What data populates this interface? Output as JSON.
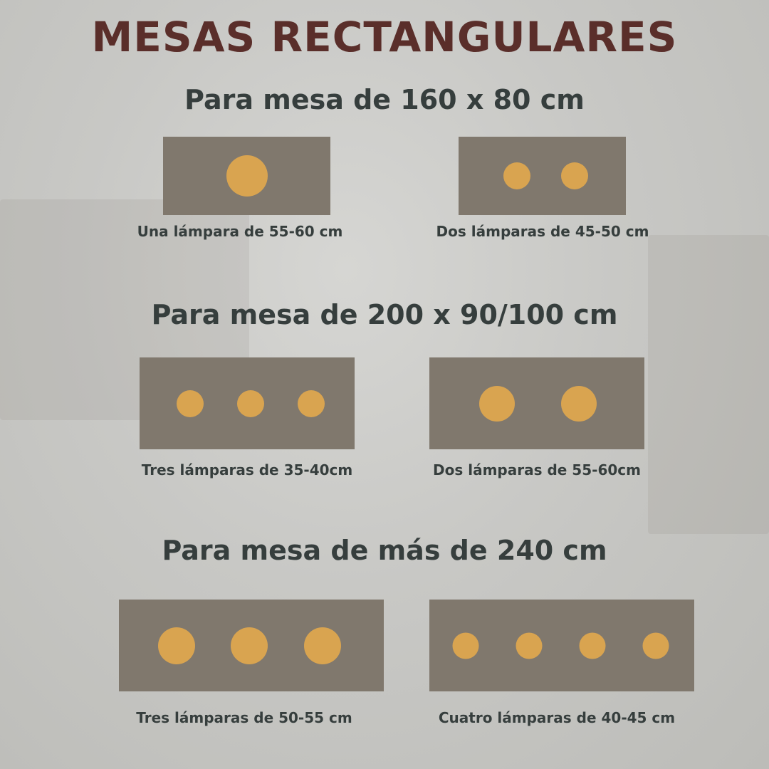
{
  "title": "MESAS RECTANGULARES",
  "colors": {
    "title": "#5a2e2a",
    "text": "#363e3d",
    "table": "#80786d",
    "lamp": "#d9a450"
  },
  "sections": [
    {
      "heading": "Para mesa de 160 x 80 cm",
      "options": [
        {
          "label": "Una lámpara de 55-60 cm",
          "lamps": 1
        },
        {
          "label": "Dos lámparas de 45-50 cm",
          "lamps": 2
        }
      ]
    },
    {
      "heading": "Para mesa de 200 x 90/100 cm",
      "options": [
        {
          "label": "Tres lámparas de 35-40cm",
          "lamps": 3
        },
        {
          "label": "Dos lámparas de 55-60cm",
          "lamps": 2
        }
      ]
    },
    {
      "heading": "Para mesa de más de 240 cm",
      "options": [
        {
          "label": "Tres lámparas de 50-55 cm",
          "lamps": 3
        },
        {
          "label": "Cuatro lámparas de 40-45 cm",
          "lamps": 4
        }
      ]
    }
  ]
}
